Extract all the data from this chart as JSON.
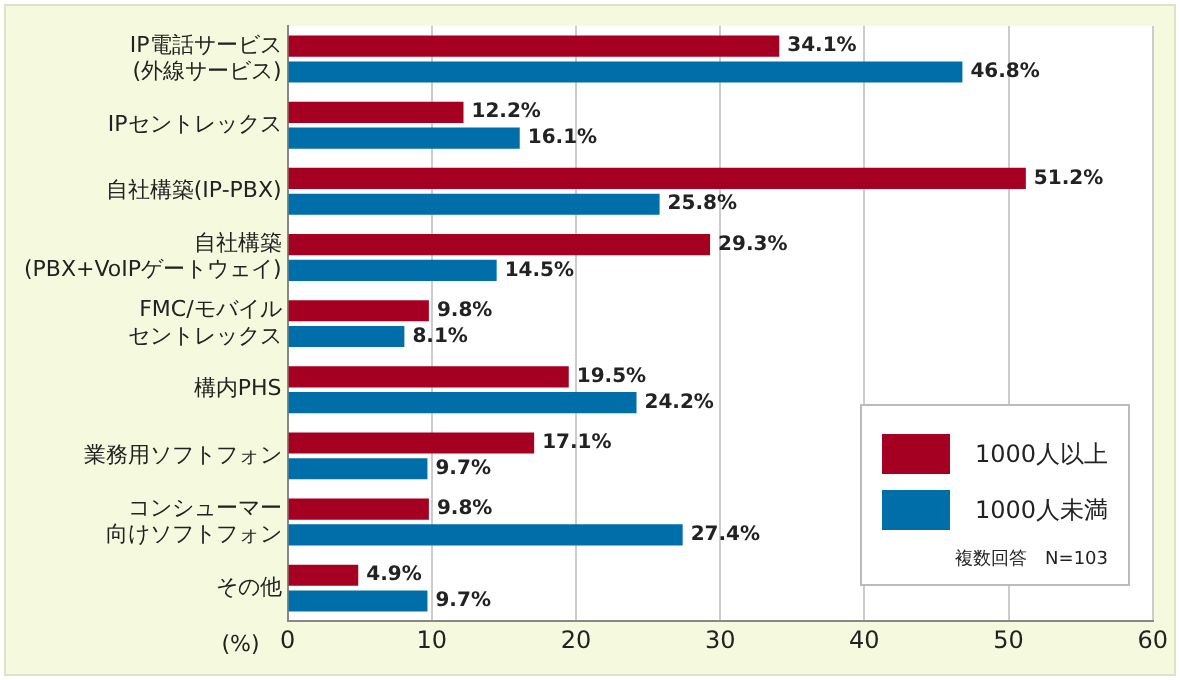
{
  "chart_data": {
    "type": "bar",
    "orientation": "horizontal",
    "xlabel": "(%)",
    "categories": [
      "IP電話サービス\n(外線サービス)",
      "IPセントレックス",
      "自社構築(IP-PBX)",
      "自社構築\n(PBX+VoIPゲートウェイ)",
      "FMC/モバイルセントレックス",
      "構内PHS",
      "業務用ソフトフォン",
      "コンシューマー向けソフトフォン",
      "その他"
    ],
    "series": [
      {
        "name": "1000人以上",
        "color": "#a50021",
        "values": [
          34.1,
          12.2,
          51.2,
          29.3,
          9.8,
          19.5,
          17.1,
          9.8,
          4.9
        ],
        "value_labels": [
          "34.1%",
          "12.2%",
          "51.2%",
          "29.3%",
          "9.8%",
          "19.5%",
          "17.1%",
          "9.8%",
          "4.9%"
        ]
      },
      {
        "name": "1000人未満",
        "color": "#006ea8",
        "values": [
          46.8,
          16.1,
          25.8,
          14.5,
          8.1,
          24.2,
          9.7,
          27.4,
          9.7
        ],
        "value_labels": [
          "46.8%",
          "16.1%",
          "25.8%",
          "14.5%",
          "8.1%",
          "24.2%",
          "9.7%",
          "27.4%",
          "9.7%"
        ]
      }
    ],
    "xlim": [
      0,
      60
    ],
    "xticks": [
      0,
      10,
      20,
      30,
      40,
      50,
      60
    ],
    "grid": "x",
    "legend": "bottom right",
    "annotations": [
      "複数回答　N=103"
    ]
  }
}
